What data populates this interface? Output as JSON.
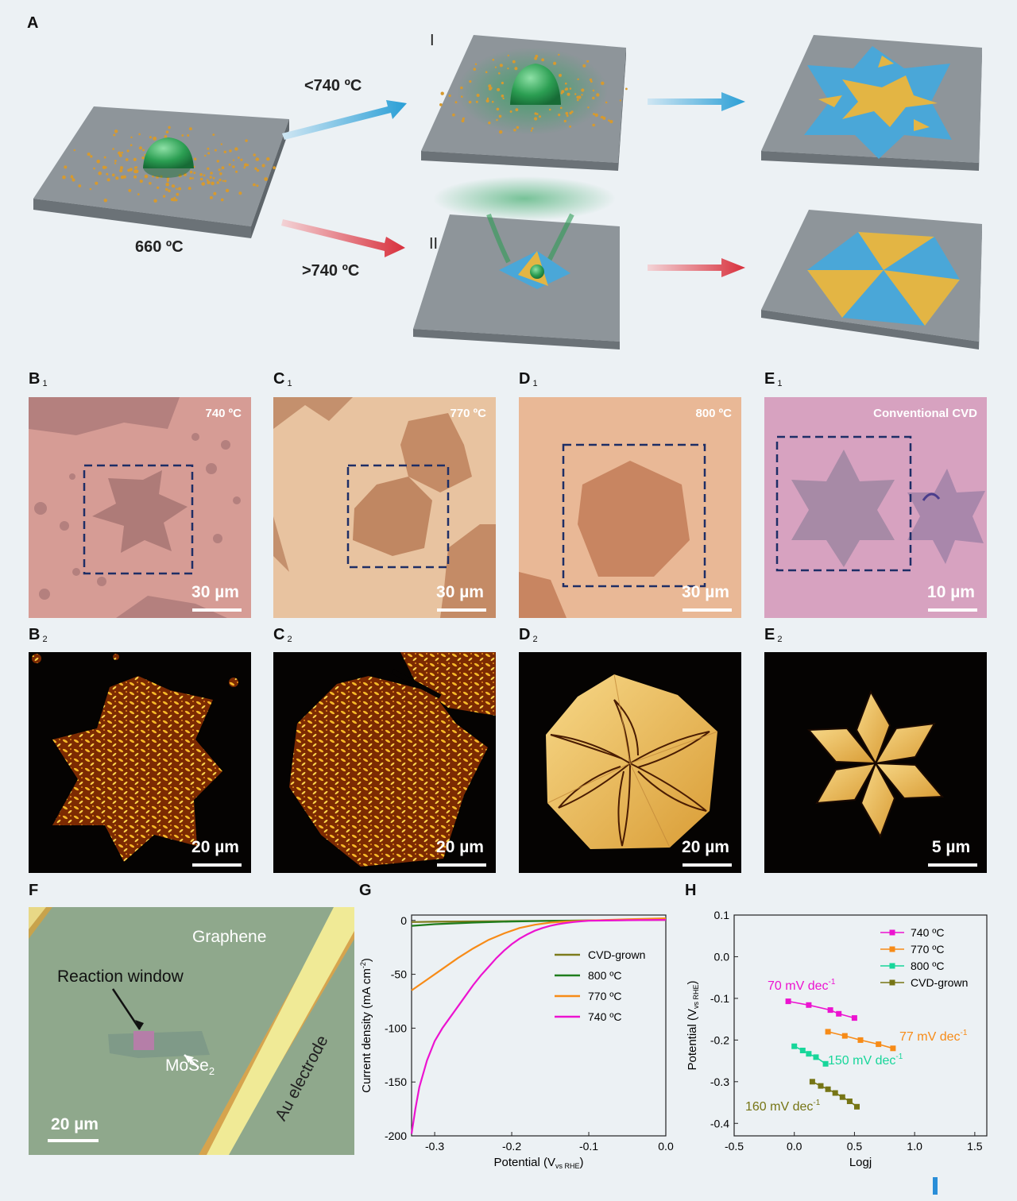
{
  "panel_labels": {
    "A": "A",
    "B1": "B",
    "C1": "C",
    "D1": "D",
    "E1": "E",
    "B2": "B",
    "C2": "C",
    "D2": "D",
    "E2": "E",
    "F": "F",
    "G": "G",
    "H": "H",
    "sub1": "1",
    "sub2": "2"
  },
  "schematic": {
    "start_temp": "660 ºC",
    "path_I": "I",
    "path_II": "II",
    "low_condition": "<740 ºC",
    "high_condition": ">740 ºC"
  },
  "row1": {
    "B1": {
      "temp": "740 ºC",
      "scale": "30 µm"
    },
    "C1": {
      "temp": "770 ºC",
      "scale": "30 µm"
    },
    "D1": {
      "temp": "800 ºC",
      "scale": "30 µm"
    },
    "E1": {
      "temp": "Conventional CVD",
      "scale": "10 µm"
    }
  },
  "row2": {
    "B2": {
      "scale": "20 µm"
    },
    "C2": {
      "scale": "20 µm"
    },
    "D2": {
      "scale": "20 µm"
    },
    "E2": {
      "scale": "5 µm"
    }
  },
  "panelF": {
    "graphene": "Graphene",
    "window": "Reaction window",
    "mose2": "MoSe",
    "mose2_sub": "2",
    "electrode": "Au electrode",
    "scale": "20 µm"
  },
  "colors": {
    "c740": "#ec13d0",
    "c770": "#f78b17",
    "c800": "#1f7d1d",
    "ccvd": "#7d7b1c",
    "c800H": "#17d69a",
    "ccvdH": "#767515"
  },
  "chart_data": [
    {
      "type": "line",
      "panel": "G",
      "xlabel": "Potential (V",
      "xlabel_sub": "vs RHE",
      "xlabel_end": ")",
      "ylabel": "Current density (mA cm",
      "ylabel_sup": "-2",
      "ylabel_end": ")",
      "xlim": [
        -0.33,
        0.0
      ],
      "ylim": [
        -200,
        5
      ],
      "xticks": [
        "-0.3",
        "-0.2",
        "-0.1",
        "0.0"
      ],
      "yticks": [
        "0",
        "-50",
        "-100",
        "-150",
        "-200"
      ],
      "legend_position": "center-right",
      "series": [
        {
          "name": "CVD-grown",
          "color": "#7d7b1c",
          "x": [
            -0.33,
            -0.3,
            -0.25,
            -0.2,
            -0.15,
            -0.1,
            -0.05,
            0.0
          ],
          "y": [
            -1.5,
            -1.2,
            -0.9,
            -0.6,
            -0.3,
            -0.1,
            0.3,
            0.5
          ]
        },
        {
          "name": "800 ºC",
          "color": "#1f7d1d",
          "x": [
            -0.33,
            -0.3,
            -0.25,
            -0.2,
            -0.15,
            -0.1,
            -0.05,
            0.0
          ],
          "y": [
            -5,
            -3.5,
            -2,
            -1,
            -0.4,
            0,
            0.5,
            1
          ]
        },
        {
          "name": "770 ºC",
          "color": "#f78b17",
          "x": [
            -0.33,
            -0.31,
            -0.29,
            -0.27,
            -0.25,
            -0.23,
            -0.21,
            -0.19,
            -0.17,
            -0.15,
            -0.13,
            -0.1,
            -0.05,
            0.0
          ],
          "y": [
            -65,
            -55,
            -45,
            -35,
            -26,
            -18,
            -12,
            -7,
            -4,
            -2,
            -1,
            0,
            1,
            2
          ]
        },
        {
          "name": "740 ºC",
          "color": "#ec13d0",
          "x": [
            -0.33,
            -0.325,
            -0.32,
            -0.31,
            -0.3,
            -0.29,
            -0.28,
            -0.27,
            -0.26,
            -0.25,
            -0.24,
            -0.23,
            -0.22,
            -0.21,
            -0.2,
            -0.19,
            -0.18,
            -0.17,
            -0.16,
            -0.15,
            -0.14,
            -0.13,
            -0.12,
            -0.11,
            -0.1,
            -0.05,
            0.0
          ],
          "y": [
            -198,
            -175,
            -155,
            -130,
            -112,
            -100,
            -90,
            -80,
            -70,
            -60,
            -51,
            -43,
            -35,
            -28,
            -22,
            -17,
            -13,
            -9.5,
            -7,
            -5,
            -3.5,
            -2.4,
            -1.5,
            -0.8,
            -0.3,
            0.2,
            0.5
          ]
        }
      ]
    },
    {
      "type": "scatter",
      "panel": "H",
      "xlabel": "Logj",
      "ylabel": "Potential (V",
      "ylabel_sub": "vs RHE",
      "ylabel_end": ")",
      "xlim": [
        -0.5,
        1.6
      ],
      "ylim": [
        -0.43,
        0.1
      ],
      "xticks": [
        "-0.5",
        "0.0",
        "0.5",
        "1.0",
        "1.5"
      ],
      "yticks": [
        "0.1",
        "0.0",
        "-0.1",
        "-0.2",
        "-0.3",
        "-0.4"
      ],
      "legend_position": "top-right",
      "series": [
        {
          "name": "740 ºC",
          "color": "#ec13d0",
          "x": [
            -0.05,
            0.12,
            0.3,
            0.37,
            0.5
          ],
          "y": [
            -0.107,
            -0.116,
            -0.128,
            -0.137,
            -0.147
          ]
        },
        {
          "name": "770 ºC",
          "color": "#f78b17",
          "x": [
            0.28,
            0.42,
            0.55,
            0.7,
            0.82
          ],
          "y": [
            -0.18,
            -0.19,
            -0.2,
            -0.21,
            -0.22
          ]
        },
        {
          "name": "800 ºC",
          "color": "#17d69a",
          "x": [
            0.0,
            0.07,
            0.12,
            0.18,
            0.26
          ],
          "y": [
            -0.215,
            -0.225,
            -0.233,
            -0.241,
            -0.257
          ]
        },
        {
          "name": "CVD-grown",
          "color": "#767515",
          "x": [
            0.15,
            0.22,
            0.28,
            0.34,
            0.4,
            0.46,
            0.52
          ],
          "y": [
            -0.3,
            -0.31,
            -0.318,
            -0.327,
            -0.337,
            -0.347,
            -0.36
          ]
        }
      ],
      "annotations": [
        "70 mV dec",
        "77 mV dec",
        "150 mV dec",
        "160 mV dec"
      ],
      "annotation_sup": "-1"
    }
  ]
}
